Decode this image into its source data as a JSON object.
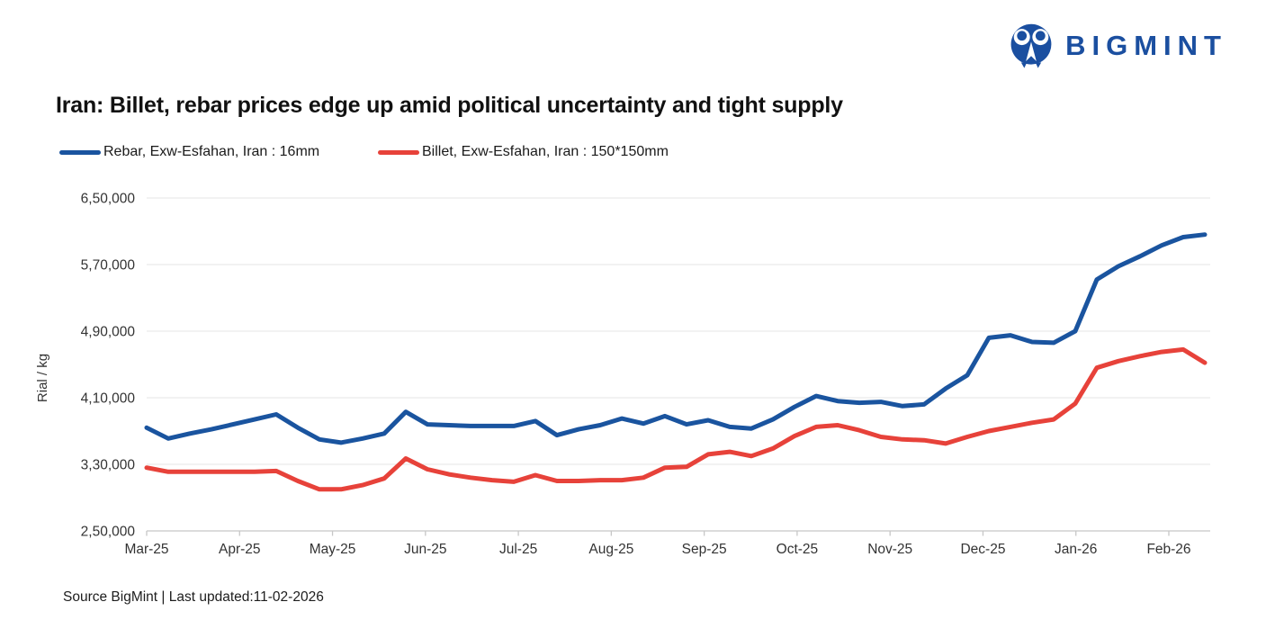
{
  "page": {
    "background": "#ffffff"
  },
  "brand": {
    "name": "BIGMINT",
    "color": "#1b4fa0"
  },
  "title": "Iran: Billet, rebar prices edge up amid political uncertainty and tight supply",
  "legend": [
    {
      "label": "Rebar, Exw-Esfahan, Iran : 16mm",
      "color": "#1a549f"
    },
    {
      "label": "Billet, Exw-Esfahan, Iran : 150*150mm",
      "color": "#e7423a"
    }
  ],
  "footer": {
    "text": "Source BigMint | Last updated:11-02-2026"
  },
  "chart_data": {
    "type": "line",
    "title": "Iran: Billet, rebar prices edge up amid political uncertainty and tight supply",
    "xlabel": "",
    "ylabel": "Rial / kg",
    "ylim": [
      250000,
      650000
    ],
    "ytick_values": [
      250000,
      330000,
      410000,
      490000,
      570000,
      650000
    ],
    "ytick_labels": [
      "2,50,000",
      "3,30,000",
      "4,10,000",
      "4,90,000",
      "5,70,000",
      "6,50,000"
    ],
    "x_tick_labels": [
      "Mar-25",
      "Apr-25",
      "May-25",
      "Jun-25",
      "Jul-25",
      "Aug-25",
      "Sep-25",
      "Oct-25",
      "Nov-25",
      "Dec-25",
      "Jan-26",
      "Feb-26"
    ],
    "frequency": "weekly",
    "grid": "horizontal",
    "legend_position": "top-left",
    "series": [
      {
        "name": "Rebar, Exw-Esfahan, Iran : 16mm",
        "color": "#1a549f",
        "values": [
          374000,
          361000,
          367000,
          372000,
          378000,
          384000,
          390000,
          374000,
          360000,
          356000,
          361000,
          367000,
          393000,
          378000,
          377000,
          376000,
          376000,
          376000,
          382000,
          365000,
          372000,
          377000,
          385000,
          379000,
          388000,
          378000,
          383000,
          375000,
          373000,
          384000,
          399000,
          412000,
          406000,
          404000,
          405000,
          400000,
          402000,
          421000,
          437000,
          482000,
          485000,
          477000,
          476000,
          490000,
          552000,
          568000,
          580000,
          593000,
          603000,
          606000
        ]
      },
      {
        "name": "Billet, Exw-Esfahan, Iran : 150*150mm",
        "color": "#e7423a",
        "values": [
          326000,
          321000,
          321000,
          321000,
          321000,
          321000,
          322000,
          310000,
          300000,
          300000,
          305000,
          313000,
          337000,
          324000,
          318000,
          314000,
          311000,
          309000,
          317000,
          310000,
          310000,
          311000,
          311000,
          314000,
          326000,
          327000,
          342000,
          345000,
          340000,
          349000,
          364000,
          375000,
          377000,
          371000,
          363000,
          360000,
          359000,
          355000,
          363000,
          370000,
          375000,
          380000,
          384000,
          403000,
          446000,
          454000,
          460000,
          465000,
          468000,
          452000
        ]
      }
    ]
  }
}
